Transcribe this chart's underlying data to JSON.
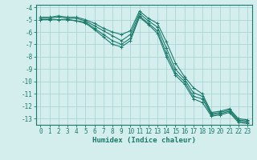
{
  "xlabel": "Humidex (Indice chaleur)",
  "background_color": "#d4eeee",
  "grid_color": "#add4d4",
  "line_color": "#1a7a6a",
  "x_values": [
    0,
    1,
    2,
    3,
    4,
    5,
    6,
    7,
    8,
    9,
    10,
    11,
    12,
    13,
    14,
    15,
    16,
    17,
    18,
    19,
    20,
    21,
    22,
    23
  ],
  "series": [
    [
      -4.8,
      -4.8,
      -4.7,
      -4.8,
      -4.8,
      -5.0,
      -5.3,
      -5.7,
      -6.0,
      -6.2,
      -5.9,
      -4.3,
      -4.9,
      -5.3,
      -6.8,
      -8.5,
      -9.6,
      -10.5,
      -11.0,
      -12.5,
      -12.4,
      -12.2,
      -13.0,
      -13.1
    ],
    [
      -4.9,
      -4.9,
      -4.8,
      -4.9,
      -4.9,
      -5.1,
      -5.5,
      -5.9,
      -6.3,
      -6.7,
      -6.2,
      -4.5,
      -5.1,
      -5.6,
      -7.3,
      -9.0,
      -9.8,
      -10.9,
      -11.2,
      -12.6,
      -12.5,
      -12.3,
      -13.1,
      -13.2
    ],
    [
      -5.0,
      -5.0,
      -5.0,
      -5.0,
      -5.1,
      -5.2,
      -5.7,
      -6.2,
      -6.7,
      -7.0,
      -6.5,
      -4.7,
      -5.3,
      -5.9,
      -7.7,
      -9.3,
      -10.0,
      -11.2,
      -11.4,
      -12.7,
      -12.6,
      -12.4,
      -13.2,
      -13.3
    ],
    [
      -5.0,
      -5.0,
      -5.0,
      -5.0,
      -5.1,
      -5.3,
      -5.8,
      -6.4,
      -7.0,
      -7.2,
      -6.7,
      -4.8,
      -5.4,
      -6.1,
      -8.0,
      -9.5,
      -10.2,
      -11.4,
      -11.7,
      -12.8,
      -12.7,
      -12.5,
      -13.3,
      -13.4
    ]
  ],
  "ylim": [
    -13.5,
    -3.8
  ],
  "xlim": [
    -0.5,
    23.5
  ],
  "yticks": [
    -4,
    -5,
    -6,
    -7,
    -8,
    -9,
    -10,
    -11,
    -12,
    -13
  ],
  "xticks": [
    0,
    1,
    2,
    3,
    4,
    5,
    6,
    7,
    8,
    9,
    10,
    11,
    12,
    13,
    14,
    15,
    16,
    17,
    18,
    19,
    20,
    21,
    22,
    23
  ],
  "marker": "+",
  "marker_size": 3,
  "linewidth": 0.8,
  "tick_fontsize": 5.5,
  "xlabel_fontsize": 6.5
}
